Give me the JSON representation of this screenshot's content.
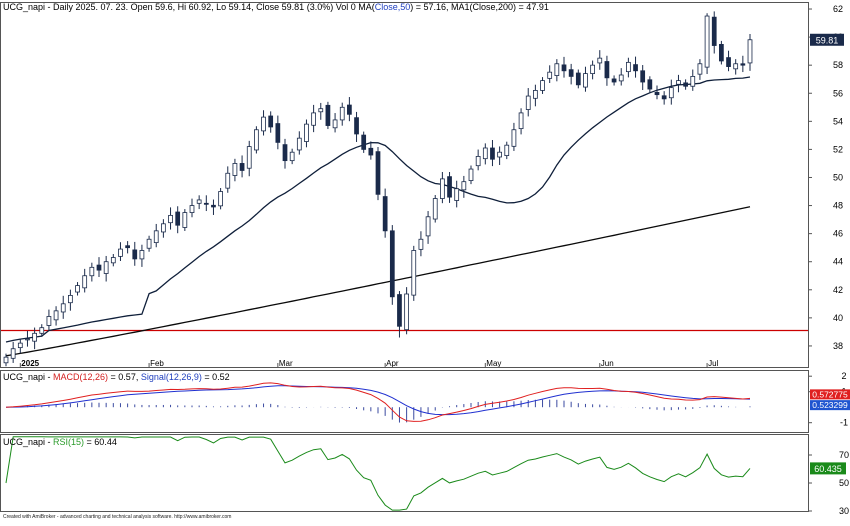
{
  "panels": {
    "price": {
      "header_parts": [
        {
          "text": "UCG_napi - Daily 2025. 07. 23. Open 59.6, Hi 60.92, Lo 59.14, Close 59.81 (3.0%) Vol 0 ",
          "color": "#000000"
        },
        {
          "text": "MA(",
          "color": "#000000"
        },
        {
          "text": "Close,50",
          "color": "#1f3fbf"
        },
        {
          "text": ") = 57.16, MA1(Close,200) = 47.91",
          "color": "#000000"
        }
      ],
      "last_label": "59.81",
      "y_ticks": [
        "38",
        "40",
        "42",
        "44",
        "46",
        "48",
        "50",
        "52",
        "54",
        "56",
        "58",
        "60",
        "62"
      ],
      "x_labels": [
        "2025",
        "Feb",
        "Mar",
        "Apr",
        "May",
        "Jun",
        "Jul"
      ]
    },
    "macd": {
      "header_parts": [
        {
          "text": "UCG_napi - ",
          "color": "#000000"
        },
        {
          "text": "MACD(12,26)",
          "color": "#d42020"
        },
        {
          "text": " = 0.57, ",
          "color": "#000000"
        },
        {
          "text": "Signal(12,26,9)",
          "color": "#1f3fbf"
        },
        {
          "text": " = 0.52",
          "color": "#000000"
        }
      ],
      "y_ticks": [
        "2",
        "1",
        "-1"
      ],
      "macd_label": "0.572775",
      "signal_label": "0.523299"
    },
    "rsi": {
      "header_parts": [
        {
          "text": "UCG_napi - ",
          "color": "#000000"
        },
        {
          "text": "RSI(15)",
          "color": "#2a9a2a"
        },
        {
          "text": " = 60.44",
          "color": "#000000"
        }
      ],
      "y_ticks": [
        "70",
        "50",
        "30"
      ],
      "rsi_label": "60.435"
    }
  },
  "footer": "Created with AmiBroker - advanced charting and technical analysis software. http://www.amibroker.com",
  "colors": {
    "candle_up": "#ffffff",
    "candle_down": "#1a2a4a",
    "ma50": "#0f1f3a",
    "ma200": "#0a0a0a",
    "support_line": "#cc0000",
    "macd_line": "#e02020",
    "signal_line": "#2030d0",
    "histogram": "#3a4aa0",
    "rsi_line": "#1a8a1a",
    "macd_badge": "#e02020",
    "signal_badge": "#1f55d0",
    "rsi_badge": "#1a8a1a",
    "last_badge": "#1a2a4a"
  },
  "chart_data": [
    {
      "type": "candlestick",
      "title": "UCG_napi - Daily",
      "ylim": [
        36.5,
        62.5
      ],
      "horizontal_line": 39.1,
      "x_month_labels": [
        "2025",
        "Feb",
        "Mar",
        "Apr",
        "May",
        "Jun",
        "Jul"
      ],
      "ohlc_closes": [
        37.2,
        37.8,
        38.2,
        38.5,
        38.9,
        39.3,
        40.1,
        40.5,
        41.0,
        41.6,
        42.3,
        43.0,
        43.6,
        43.4,
        44.0,
        44.3,
        44.9,
        45.0,
        44.2,
        44.8,
        45.6,
        46.2,
        46.7,
        47.3,
        46.6,
        47.5,
        48.0,
        48.4,
        48.1,
        47.9,
        49.0,
        50.3,
        51.0,
        50.5,
        52.2,
        53.4,
        54.3,
        53.6,
        52.5,
        51.2,
        51.8,
        52.8,
        53.8,
        54.6,
        54.9,
        53.7,
        54.1,
        55.0,
        54.5,
        53.1,
        52.0,
        51.6,
        48.8,
        46.2,
        41.5,
        39.4,
        41.7,
        44.8,
        45.6,
        47.2,
        48.5,
        49.9,
        48.6,
        49.2,
        49.7,
        50.6,
        51.5,
        52.1,
        51.3,
        51.8,
        52.3,
        53.4,
        54.6,
        55.8,
        56.2,
        56.9,
        57.5,
        58.1,
        57.6,
        57.2,
        56.6,
        57.4,
        58.0,
        58.5,
        57.1,
        56.8,
        57.3,
        58.2,
        57.6,
        56.8,
        56.3,
        55.9,
        55.6,
        56.4,
        56.9,
        56.5,
        57.2,
        58.1,
        61.5,
        59.4,
        58.3,
        57.9,
        58.1,
        58.0,
        59.81
      ],
      "series": [
        {
          "name": "MA(Close,50)",
          "value_last": 57.16
        },
        {
          "name": "MA1(Close,200)",
          "value_last": 47.91
        }
      ]
    },
    {
      "type": "line",
      "title": "MACD(12,26)",
      "ylim": [
        -1.6,
        2.4
      ],
      "series": [
        {
          "name": "MACD(12,26)",
          "value_last": 0.57
        },
        {
          "name": "Signal(12,26,9)",
          "value_last": 0.52
        }
      ]
    },
    {
      "type": "line",
      "title": "RSI(15)",
      "ylim": [
        30,
        85
      ],
      "series": [
        {
          "name": "RSI(15)",
          "value_last": 60.44
        }
      ]
    }
  ]
}
